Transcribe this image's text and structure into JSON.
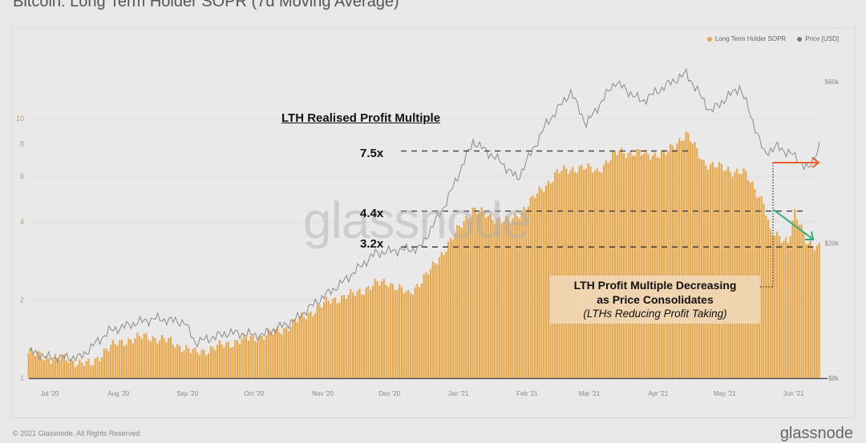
{
  "page": {
    "title": "Bitcoin: Long Term Holder SOPR (7d Moving Average)",
    "footer_copyright": "© 2021 Glassnode. All Rights Reserved.",
    "footer_brand": "glassnode",
    "watermark": "glassnode"
  },
  "legend": [
    {
      "label": "Long Term Holder SOPR",
      "color": "#e8a84c"
    },
    {
      "label": "Price [USD]",
      "color": "#777777"
    }
  ],
  "annotations": {
    "title": "LTH Realised Profit Multiple",
    "levels": [
      {
        "label": "7.5x",
        "value": 7.5
      },
      {
        "label": "4.4x",
        "value": 4.4
      },
      {
        "label": "3.2x",
        "value": 3.2
      }
    ],
    "box_line1": "LTH Profit Multiple Decreasing",
    "box_line2": "as Price Consolidates",
    "box_line3": "(LTHs Reducing Profit Taking)",
    "arrow_price_color": "#e8602c",
    "arrow_sopr_color": "#2eaa78"
  },
  "chart_data": {
    "type": "bar",
    "title": "Bitcoin: Long Term Holder SOPR (7d Moving Average)",
    "xlabel": "",
    "ylabel_left": "Long Term Holder SOPR",
    "ylabel_right": "Price [USD]",
    "y_scale": "log",
    "ylim": [
      1,
      12
    ],
    "y2lim": [
      8000,
      68000
    ],
    "y_ticks": [
      "1",
      "2",
      "4",
      "6",
      "8",
      "10"
    ],
    "y_tick_values": [
      1,
      2,
      4,
      6,
      8,
      10
    ],
    "y2_ticks": [
      "$8k",
      "$20k",
      "$60k"
    ],
    "y2_tick_values": [
      8000,
      20000,
      60000
    ],
    "x_ticks": [
      "Jul '20",
      "Aug '20",
      "Sep '20",
      "Oct '20",
      "Nov '20",
      "Dec '20",
      "Jan '21",
      "Feb '21",
      "Mar '21",
      "Apr '21",
      "May '21",
      "Jun '21"
    ],
    "x_range": [
      "2020-06-22",
      "2021-06-13"
    ],
    "grid": true,
    "legend_position": "top-right",
    "series": [
      {
        "name": "Long Term Holder SOPR",
        "type": "bar",
        "color": "#e8a84c",
        "monthly_keypoints": [
          {
            "date": "2020-06-22",
            "value": 1.25
          },
          {
            "date": "2020-07-01",
            "value": 1.2
          },
          {
            "date": "2020-07-10",
            "value": 1.18
          },
          {
            "date": "2020-07-20",
            "value": 1.12
          },
          {
            "date": "2020-07-27",
            "value": 1.3
          },
          {
            "date": "2020-08-05",
            "value": 1.4
          },
          {
            "date": "2020-08-15",
            "value": 1.45
          },
          {
            "date": "2020-08-25",
            "value": 1.38
          },
          {
            "date": "2020-09-05",
            "value": 1.25
          },
          {
            "date": "2020-09-15",
            "value": 1.32
          },
          {
            "date": "2020-09-25",
            "value": 1.4
          },
          {
            "date": "2020-10-05",
            "value": 1.45
          },
          {
            "date": "2020-10-15",
            "value": 1.55
          },
          {
            "date": "2020-10-25",
            "value": 1.75
          },
          {
            "date": "2020-11-05",
            "value": 2.0
          },
          {
            "date": "2020-11-15",
            "value": 2.1
          },
          {
            "date": "2020-11-25",
            "value": 2.3
          },
          {
            "date": "2020-12-01",
            "value": 2.35
          },
          {
            "date": "2020-12-10",
            "value": 2.1
          },
          {
            "date": "2020-12-20",
            "value": 2.6
          },
          {
            "date": "2020-12-27",
            "value": 3.2
          },
          {
            "date": "2021-01-08",
            "value": 4.5
          },
          {
            "date": "2021-01-15",
            "value": 4.2
          },
          {
            "date": "2021-01-25",
            "value": 4.0
          },
          {
            "date": "2021-02-05",
            "value": 5.0
          },
          {
            "date": "2021-02-15",
            "value": 6.2
          },
          {
            "date": "2021-02-25",
            "value": 6.5
          },
          {
            "date": "2021-03-05",
            "value": 6.3
          },
          {
            "date": "2021-03-15",
            "value": 7.5
          },
          {
            "date": "2021-03-25",
            "value": 7.3
          },
          {
            "date": "2021-04-05",
            "value": 7.3
          },
          {
            "date": "2021-04-14",
            "value": 8.8
          },
          {
            "date": "2021-04-22",
            "value": 6.8
          },
          {
            "date": "2021-05-01",
            "value": 6.4
          },
          {
            "date": "2021-05-10",
            "value": 6.2
          },
          {
            "date": "2021-05-19",
            "value": 4.8
          },
          {
            "date": "2021-05-22",
            "value": 3.6
          },
          {
            "date": "2021-05-30",
            "value": 3.4
          },
          {
            "date": "2021-06-02",
            "value": 4.3
          },
          {
            "date": "2021-06-07",
            "value": 3.4
          },
          {
            "date": "2021-06-13",
            "value": 3.2
          }
        ]
      },
      {
        "name": "Price [USD]",
        "type": "line",
        "color": "#888888",
        "monthly_keypoints": [
          {
            "date": "2020-06-22",
            "value": 9600
          },
          {
            "date": "2020-07-01",
            "value": 9200
          },
          {
            "date": "2020-07-15",
            "value": 9200
          },
          {
            "date": "2020-07-28",
            "value": 11000
          },
          {
            "date": "2020-08-10",
            "value": 11700
          },
          {
            "date": "2020-08-18",
            "value": 12000
          },
          {
            "date": "2020-08-31",
            "value": 11700
          },
          {
            "date": "2020-09-05",
            "value": 10200
          },
          {
            "date": "2020-09-20",
            "value": 10900
          },
          {
            "date": "2020-10-05",
            "value": 10700
          },
          {
            "date": "2020-10-20",
            "value": 11900
          },
          {
            "date": "2020-10-30",
            "value": 13500
          },
          {
            "date": "2020-11-10",
            "value": 15300
          },
          {
            "date": "2020-11-25",
            "value": 18700
          },
          {
            "date": "2020-12-05",
            "value": 19100
          },
          {
            "date": "2020-12-15",
            "value": 19300
          },
          {
            "date": "2020-12-27",
            "value": 26500
          },
          {
            "date": "2021-01-08",
            "value": 40000
          },
          {
            "date": "2021-01-20",
            "value": 35000
          },
          {
            "date": "2021-01-28",
            "value": 31000
          },
          {
            "date": "2021-02-10",
            "value": 45000
          },
          {
            "date": "2021-02-21",
            "value": 56000
          },
          {
            "date": "2021-02-28",
            "value": 45000
          },
          {
            "date": "2021-03-13",
            "value": 60000
          },
          {
            "date": "2021-03-25",
            "value": 52500
          },
          {
            "date": "2021-04-05",
            "value": 58500
          },
          {
            "date": "2021-04-14",
            "value": 63500
          },
          {
            "date": "2021-04-25",
            "value": 49000
          },
          {
            "date": "2021-05-08",
            "value": 58000
          },
          {
            "date": "2021-05-12",
            "value": 50000
          },
          {
            "date": "2021-05-19",
            "value": 37000
          },
          {
            "date": "2021-05-25",
            "value": 38500
          },
          {
            "date": "2021-06-01",
            "value": 36500
          },
          {
            "date": "2021-06-08",
            "value": 33000
          },
          {
            "date": "2021-06-13",
            "value": 39000
          }
        ]
      }
    ]
  }
}
